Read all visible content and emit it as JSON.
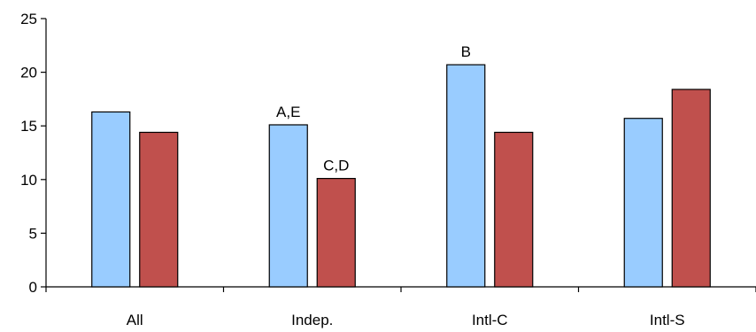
{
  "chart_data": {
    "type": "bar",
    "title": "",
    "xlabel": "",
    "ylabel": "",
    "ylim": [
      0,
      25
    ],
    "yticks": [
      0,
      5,
      10,
      15,
      20,
      25
    ],
    "grid": false,
    "legend": "none",
    "categories": [
      "All",
      "Indep.",
      "Intl-C",
      "Intl-S"
    ],
    "series": [
      {
        "color": "#99CCFF",
        "values": [
          16.3,
          15.1,
          20.7,
          15.7
        ],
        "labels": [
          "",
          "A,E",
          "B",
          ""
        ]
      },
      {
        "color": "#C0504D",
        "values": [
          14.4,
          10.1,
          14.4,
          18.4
        ],
        "labels": [
          "",
          "C,D",
          "",
          ""
        ]
      }
    ]
  }
}
